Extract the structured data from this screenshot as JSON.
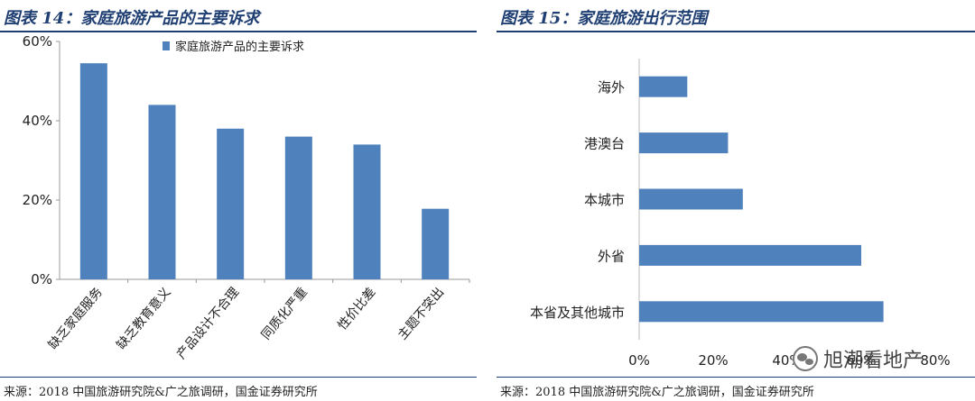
{
  "chart_data": [
    {
      "type": "bar",
      "figure_label": "图表 14：家庭旅游产品的主要诉求",
      "categories": [
        "缺乏家庭服务",
        "缺乏教育意义",
        "产品设计不合理",
        "同质化严重",
        "性价比差",
        "主题不突出"
      ],
      "series": [
        {
          "name": "家庭旅游产品的主要诉求",
          "values": [
            54.5,
            44,
            38,
            36,
            34,
            17.8
          ]
        }
      ],
      "ylim": [
        0,
        60
      ],
      "yticks": [
        0,
        20,
        40,
        60
      ],
      "ytick_labels": [
        "0%",
        "20%",
        "40%",
        "60%"
      ],
      "legend_position": "top",
      "bar_color": "#4f81bd",
      "source": "来源：2018 中国旅游研究院&广之旅调研，国金证券研究所"
    },
    {
      "type": "bar",
      "orientation": "horizontal",
      "figure_label": "图表 15：家庭旅游出行范围",
      "categories": [
        "本省及其他城市",
        "外省",
        "本城市",
        "港澳台",
        "海外"
      ],
      "values": [
        66,
        60,
        28,
        24,
        13
      ],
      "xlim": [
        0,
        80
      ],
      "xticks": [
        0,
        20,
        40,
        60,
        80
      ],
      "xtick_labels": [
        "0%",
        "20%",
        "40%",
        "60%",
        "80%"
      ],
      "bar_color": "#4f81bd",
      "source": "来源：2018 中国旅游研究院&广之旅调研，国金证券研究所"
    }
  ],
  "watermark": {
    "text": "旭潮看地产"
  }
}
